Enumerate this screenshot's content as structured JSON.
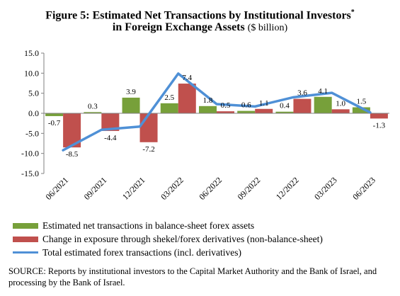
{
  "title": {
    "line1": "Figure 5: Estimated Net Transactions by Institutional Investors",
    "star": "*",
    "line2": "in Foreign Exchange Assets",
    "unit": "($ billion)"
  },
  "colors": {
    "green": "#77a03a",
    "red": "#c0504d",
    "blue": "#4f90d6"
  },
  "chart_data": {
    "type": "bar",
    "title": "Figure 5: Estimated Net Transactions by Institutional Investors* in Foreign Exchange Assets ($ billion)",
    "categories": [
      "06/2021",
      "09/2021",
      "12/2021",
      "03/2022",
      "06/2022",
      "09/2022",
      "12/2022",
      "03/2023",
      "06/2023"
    ],
    "series": [
      {
        "name": "Estimated net transactions in balance-sheet forex assets",
        "kind": "bar",
        "color": "#77a03a",
        "values": [
          -0.7,
          0.3,
          3.9,
          2.5,
          1.8,
          0.6,
          0.4,
          4.1,
          1.5
        ]
      },
      {
        "name": "Change in exposure through shekel/forex derivatives (non-balance-sheet)",
        "kind": "bar",
        "color": "#c0504d",
        "values": [
          -8.5,
          -4.4,
          -7.2,
          7.4,
          0.5,
          1.1,
          3.6,
          1.0,
          -1.3
        ]
      },
      {
        "name": "Total estimated forex transactions (incl. derivatives)",
        "kind": "line",
        "color": "#4f90d6",
        "values": [
          -9.2,
          -4.1,
          -3.3,
          9.9,
          2.3,
          1.7,
          4.0,
          5.1,
          0.2
        ]
      }
    ],
    "value_labels": [
      [
        "-0.7",
        "0.3",
        "3.9",
        "2.5",
        "1.8",
        "0.6",
        "0.4",
        "4.1",
        "1.5"
      ],
      [
        "-8.5",
        "-4.4",
        "-7.2",
        "7.4",
        "0.5",
        "1.1",
        "3.6",
        "1.0",
        "-1.3"
      ]
    ],
    "yticks": [
      "15.0",
      "10.0",
      "5.0",
      "0.0",
      "-5.0",
      "-10.0",
      "-15.0"
    ],
    "ylim": [
      -15,
      15
    ],
    "grid": false,
    "legend": "bottom"
  },
  "source": {
    "label": "SOURCE:",
    "text": "Reports by institutional investors to the Capital Market Authority and the Bank of Israel, and processing by the Bank of Israel."
  }
}
